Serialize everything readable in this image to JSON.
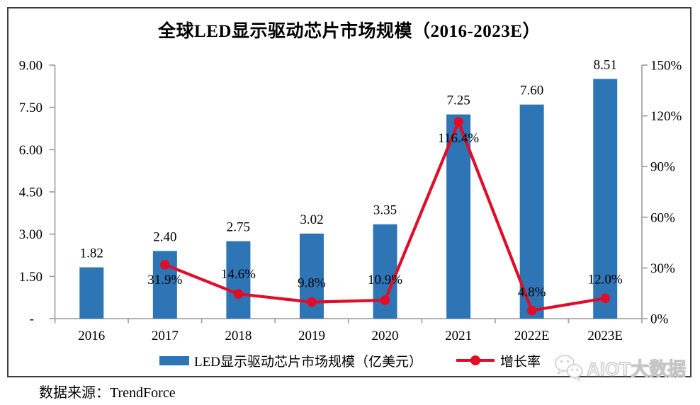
{
  "title": "全球LED显示驱动芯片市场规模（2016-2023E）",
  "legend": {
    "bar_label": "LED显示驱动芯片市场规模（亿美元）",
    "line_label": "增长率"
  },
  "source": "数据来源：TrendForce",
  "watermark": {
    "text": "AIOT大数据"
  },
  "colors": {
    "bar": "#2E75B6",
    "line": "#E00D28",
    "axis": "#A6A6A6",
    "text": "#000000",
    "frame": "#3F3F3F",
    "watermark": "#DEDEDE"
  },
  "chart_data": {
    "type": "bar",
    "subtype": "bar-line-combo",
    "title": "全球LED显示驱动芯片市场规模（2016-2023E）",
    "categories": [
      "2016",
      "2017",
      "2018",
      "2019",
      "2020",
      "2021",
      "2022E",
      "2023E"
    ],
    "series": [
      {
        "name": "LED显示驱动芯片市场规模（亿美元）",
        "type": "bar",
        "axis": "left",
        "values": [
          1.82,
          2.4,
          2.75,
          3.02,
          3.35,
          7.25,
          7.6,
          8.51
        ],
        "labels": [
          "1.82",
          "2.40",
          "2.75",
          "3.02",
          "3.35",
          "7.25",
          "7.60",
          "8.51"
        ]
      },
      {
        "name": "增长率",
        "type": "line",
        "axis": "right",
        "values": [
          null,
          31.9,
          14.6,
          9.8,
          10.9,
          116.4,
          4.8,
          12.0
        ],
        "labels": [
          null,
          "31.9%",
          "14.6%",
          "9.8%",
          "10.9%",
          "116.4%",
          "4.8%",
          "12.0%"
        ]
      }
    ],
    "left_axis": {
      "min": 0,
      "max": 9,
      "tick_labels": [
        "9.00",
        "7.50",
        "6.00",
        "4.50",
        "3.00",
        "1.50",
        "-"
      ]
    },
    "right_axis": {
      "min": 0,
      "max": 150,
      "tick_labels": [
        "150%",
        "120%",
        "90%",
        "60%",
        "30%",
        "0%"
      ]
    },
    "grid": false,
    "legend_position": "bottom"
  }
}
